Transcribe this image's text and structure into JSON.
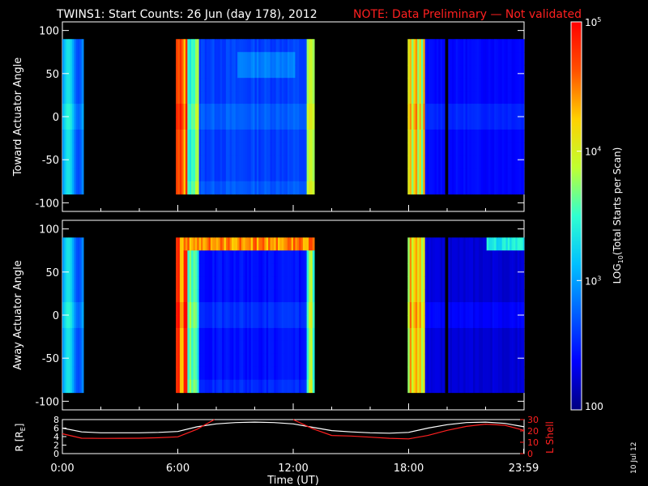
{
  "header": {
    "title": "TWINS1: Start Counts: 26 Jun (day 178), 2012",
    "note": "NOTE: Data Preliminary — Not validated"
  },
  "side_date": "10 Jul 12",
  "colorbar": {
    "label": "LOG10(Total Starts per Scan)",
    "label_main": "LOG",
    "label_sub": "10",
    "label_rest": "(Total Starts per Scan)",
    "ticks": [
      {
        "value": 100,
        "text": "100"
      },
      {
        "value": 1000,
        "text": "10^3"
      },
      {
        "value": 10000,
        "text": "10^4"
      },
      {
        "value": 100000,
        "text": "10^5"
      }
    ],
    "colors": [
      "#00007f",
      "#0000ff",
      "#0060ff",
      "#00c0ff",
      "#30ffd0",
      "#c0ff30",
      "#ffd000",
      "#ff5000",
      "#ff0000"
    ]
  },
  "chart_data": [
    {
      "type": "heatmap",
      "ylabel": "Toward Actuator Angle",
      "ylim": [
        -110,
        110
      ],
      "yticks": [
        -100,
        -50,
        0,
        50,
        100
      ],
      "xlim": [
        0,
        24
      ],
      "data_y_range": [
        -90,
        90
      ],
      "data_segments_ut": [
        [
          0.0,
          1.1
        ],
        [
          5.9,
          13.1
        ],
        [
          17.95,
          19.9
        ],
        [
          20.05,
          24.0
        ]
      ],
      "characteristic_log_counts": {
        "0.0-1.1": 3.1,
        "5.9-6.4": 4.6,
        "6.4-13.1": 2.6,
        "17.95-18.8": 3.9,
        "18.8-24": 2.3
      }
    },
    {
      "type": "heatmap",
      "ylabel": "Away Actuator Angle",
      "ylim": [
        -110,
        110
      ],
      "yticks": [
        -100,
        -50,
        0,
        50,
        100
      ],
      "xlim": [
        0,
        24
      ],
      "data_y_range": [
        -90,
        90
      ],
      "data_segments_ut": [
        [
          0.0,
          1.1
        ],
        [
          5.9,
          13.1
        ],
        [
          17.95,
          19.9
        ],
        [
          20.05,
          24.0
        ]
      ],
      "characteristic_log_counts": {
        "0.0-1.1": 3.2,
        "5.9-6.4": 4.7,
        "6.4-13.1": 2.4,
        "top_band_6.2-13.1": 4.5,
        "17.95-18.8": 4.0,
        "18.8-24": 2.2,
        "top_band_22-24": 3.5
      }
    },
    {
      "type": "line",
      "ylabel": "R [RE]",
      "ylabel_main": "R [R",
      "ylabel_sub": "E",
      "ylabel_end": "]",
      "y2label": "L Shell",
      "xlabel": "Time (UT)",
      "xlim": [
        0,
        24
      ],
      "ylim": [
        0,
        8
      ],
      "yticks": [
        0,
        2,
        4,
        6,
        8
      ],
      "y2lim": [
        0,
        30
      ],
      "y2ticks": [
        0,
        10,
        20,
        30
      ],
      "xticks": [
        {
          "value": 0,
          "text": "0:00"
        },
        {
          "value": 6,
          "text": "6:00"
        },
        {
          "value": 12,
          "text": "12:00"
        },
        {
          "value": 18,
          "text": "18:00"
        },
        {
          "value": 23.98,
          "text": "23:59"
        }
      ],
      "series": [
        {
          "color": "#ffffff",
          "x": [
            0,
            1,
            2,
            3,
            4,
            5,
            6,
            7,
            8,
            9,
            10,
            11,
            12,
            13,
            14,
            15,
            16,
            17,
            18,
            19,
            20,
            21,
            22,
            23,
            24
          ],
          "y": [
            6.0,
            5.1,
            4.9,
            4.9,
            4.9,
            5.0,
            5.2,
            6.3,
            7.0,
            7.3,
            7.4,
            7.3,
            7.0,
            6.2,
            5.4,
            5.1,
            4.9,
            4.8,
            5.0,
            6.0,
            6.8,
            7.3,
            7.4,
            7.1,
            6.3
          ]
        },
        {
          "color": "#ff2020",
          "x": [
            0,
            1,
            2,
            3,
            4,
            5,
            6,
            7,
            7.9,
            12,
            13,
            14,
            15,
            16,
            17,
            18,
            19,
            20,
            21,
            22,
            23,
            24
          ],
          "y2": [
            17.5,
            13.6,
            13.4,
            13.5,
            13.6,
            14.0,
            14.8,
            21.5,
            30,
            30,
            22.0,
            16.0,
            15.5,
            14.5,
            13.5,
            13.0,
            16.0,
            20.5,
            24.0,
            26.0,
            25.0,
            20.5
          ]
        }
      ]
    }
  ]
}
